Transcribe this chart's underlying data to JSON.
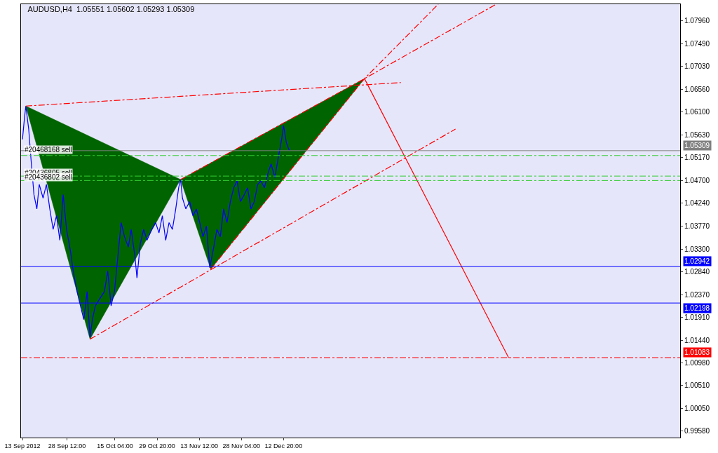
{
  "chart_data": {
    "type": "line",
    "title": "AUDUSD,H4  1.05551 1.05602 1.05293 1.05309",
    "series": [
      {
        "color": "#0000ff",
        "x": [
          "2012-09-13T00:00",
          "2012-09-13T16:00",
          "2012-09-14T04:00",
          "2012-09-15T04:00",
          "2012-09-16T00:00",
          "2012-09-17T00:00",
          "2012-09-18T00:00",
          "2012-09-18T20:00",
          "2012-09-20T04:00",
          "2012-09-21T08:00",
          "2012-09-22T12:00",
          "2012-09-23T16:00",
          "2012-09-24T20:00",
          "2012-09-26T00:00",
          "2012-09-27T04:00",
          "2012-09-28T08:00",
          "2012-09-29T16:00",
          "2012-09-30T20:00",
          "2012-10-02T00:00",
          "2012-10-03T04:00",
          "2012-10-04T08:00",
          "2012-10-05T12:00",
          "2012-10-06T12:00",
          "2012-10-07T08:00",
          "2012-10-08T08:00",
          "2012-10-09T20:00",
          "2012-10-11T12:00",
          "2012-10-12T16:00",
          "2012-10-13T20:00",
          "2012-10-15T00:00",
          "2012-10-16T04:00",
          "2012-10-17T08:00",
          "2012-10-18T12:00",
          "2012-10-19T20:00",
          "2012-10-20T20:00",
          "2012-10-22T04:00",
          "2012-10-22T20:00",
          "2012-10-24T00:00",
          "2012-10-25T04:00",
          "2012-10-26T08:00",
          "2012-10-28T00:00",
          "2012-10-29T08:00",
          "2012-10-30T12:00",
          "2012-10-31T16:00",
          "2012-11-01T20:00",
          "2012-11-03T00:00",
          "2012-11-04T04:00",
          "2012-11-05T08:00",
          "2012-11-06T08:00",
          "2012-11-07T00:00",
          "2012-11-07T16:00",
          "2012-11-08T20:00",
          "2012-11-10T04:00",
          "2012-11-11T08:00",
          "2012-11-12T12:00",
          "2012-11-13T16:00",
          "2012-11-14T20:00",
          "2012-11-16T00:00",
          "2012-11-17T04:00",
          "2012-11-18T08:00",
          "2012-11-19T16:00",
          "2012-11-20T20:00",
          "2012-11-22T00:00",
          "2012-11-23T04:00",
          "2012-11-24T08:00",
          "2012-11-25T12:00",
          "2012-11-26T16:00",
          "2012-11-27T20:00",
          "2012-11-29T04:00",
          "2012-11-30T08:00",
          "2012-12-01T12:00",
          "2012-12-02T16:00",
          "2012-12-03T20:00",
          "2012-12-05T00:00",
          "2012-12-06T04:00",
          "2012-12-07T08:00",
          "2012-12-08T12:00",
          "2012-12-09T20:00",
          "2012-12-10T20:00",
          "2012-12-12T04:00",
          "2012-12-12T20:00",
          "2012-12-13T20:00",
          "2012-12-14T20:00"
        ],
        "values": [
          1.0554,
          1.0596,
          1.0622,
          1.0575,
          1.0511,
          1.0441,
          1.0412,
          1.0462,
          1.0434,
          1.0462,
          1.0412,
          1.037,
          1.0398,
          1.0348,
          1.0441,
          1.037,
          1.0327,
          1.0278,
          1.0243,
          1.0214,
          1.0186,
          1.0243,
          1.015,
          1.0186,
          1.0214,
          1.0228,
          1.0243,
          1.0285,
          1.0214,
          1.0243,
          1.0313,
          1.0384,
          1.0355,
          1.0334,
          1.037,
          1.0313,
          1.0271,
          1.0341,
          1.037,
          1.0348,
          1.037,
          1.0384,
          1.0363,
          1.0398,
          1.0348,
          1.0384,
          1.037,
          1.0412,
          1.0455,
          1.0472,
          1.0434,
          1.0412,
          1.0427,
          1.0398,
          1.0412,
          1.0384,
          1.0355,
          1.0377,
          1.0292,
          1.0327,
          1.037,
          1.0355,
          1.0412,
          1.0384,
          1.0427,
          1.0455,
          1.0469,
          1.0427,
          1.0441,
          1.0455,
          1.0412,
          1.0427,
          1.0462,
          1.0469,
          1.0455,
          1.0483,
          1.0504,
          1.0476,
          1.0511,
          1.0554,
          1.0582,
          1.0547,
          1.0531
        ]
      },
      {
        "type": "area",
        "color": "#006400",
        "x": [
          "2012-09-14T04:00",
          "2012-10-06T12:00",
          "2012-11-07T00:00",
          "2012-09-14T04:00"
        ],
        "values": [
          1.0622,
          1.0146,
          1.0472,
          1.0622
        ]
      },
      {
        "type": "area",
        "color": "#006400",
        "x": [
          "2012-11-07T00:00",
          "2012-11-17T12:00",
          "2013-01-10T00:00",
          "2012-11-07T00:00"
        ],
        "values": [
          1.0472,
          1.0289,
          1.0678,
          1.0472
        ]
      },
      {
        "type": "line",
        "color": "#ff0000",
        "line_style": "dashed",
        "x": [
          "2012-09-14T04:00",
          "2013-01-22T16:00"
        ],
        "values": [
          1.0622,
          1.067
        ]
      },
      {
        "type": "line",
        "color": "#ff0000",
        "line_style": "dashed",
        "x": [
          "2012-10-06T12:00",
          "2013-02-10T16:00"
        ],
        "values": [
          1.0146,
          1.0575
        ]
      },
      {
        "type": "line",
        "color": "#ff0000",
        "line_style": "dashed",
        "x": [
          "2012-11-17T12:00",
          "2013-01-10T00:00",
          "2013-02-04T16:00"
        ],
        "values": [
          1.0289,
          1.0678,
          1.083
        ]
      },
      {
        "type": "line",
        "color": "#ff0000",
        "line_style": "dashed",
        "x": [
          "2012-11-07T00:00",
          "2013-01-10T00:00",
          "2013-02-24T20:00"
        ],
        "values": [
          1.0472,
          1.0678,
          1.083
        ]
      },
      {
        "type": "line",
        "color": "#ff0000",
        "line_style": "solid",
        "x": [
          "2013-01-10T00:00",
          "2013-03-01T04:00"
        ],
        "values": [
          1.0678,
          1.0108
        ]
      }
    ],
    "ref_lines": [
      {
        "axis": "y",
        "value": 1.05309,
        "label": "1.05309",
        "color": "#808080",
        "line_style": "solid"
      },
      {
        "axis": "y",
        "value": 1.0521,
        "color": "#32cd32",
        "line_style": "dashed"
      },
      {
        "axis": "y",
        "value": 1.0479,
        "color": "#32cd32",
        "line_style": "dashed"
      },
      {
        "axis": "y",
        "value": 1.047,
        "color": "#32cd32",
        "line_style": "dashed"
      },
      {
        "axis": "y",
        "value": 1.02942,
        "label": "1.02942",
        "color": "#0000ff",
        "line_style": "solid"
      },
      {
        "axis": "y",
        "value": 1.02198,
        "label": "1.02198",
        "color": "#0000ff",
        "line_style": "solid"
      },
      {
        "axis": "y",
        "value": 1.01083,
        "label": "1.01083",
        "color": "#ff0000",
        "line_style": "dashed"
      }
    ],
    "annotations": [
      {
        "text": "#20468168 sell",
        "x": "2012-09-13T12:00",
        "y": 1.0533
      },
      {
        "text": "#20436805 sell",
        "x": "2012-09-13T12:00",
        "y": 1.0486
      },
      {
        "text": "#20436802 sell",
        "x": "2012-09-13T12:00",
        "y": 1.0477
      }
    ],
    "xlim": [
      "2012-09-12T12:00",
      "2013-04-29T20:00"
    ],
    "xticks": [
      {
        "value": "2012-09-13T00:00",
        "label": "13 Sep 2012"
      },
      {
        "value": "2012-09-28T12:00",
        "label": "28 Sep 12:00"
      },
      {
        "value": "2012-10-15T04:00",
        "label": "15 Oct 04:00"
      },
      {
        "value": "2012-10-29T20:00",
        "label": "29 Oct 20:00"
      },
      {
        "value": "2012-11-13T12:00",
        "label": "13 Nov 12:00"
      },
      {
        "value": "2012-11-28T04:00",
        "label": "28 Nov 04:00"
      },
      {
        "value": "2012-12-12T20:00",
        "label": "12 Dec 20:00"
      }
    ],
    "ylim": [
      0.9945,
      1.083
    ],
    "yticks": [
      {
        "value": 1.0796,
        "label": "1.07960"
      },
      {
        "value": 1.0749,
        "label": "1.07490"
      },
      {
        "value": 1.0703,
        "label": "1.07030"
      },
      {
        "value": 1.0656,
        "label": "1.06560"
      },
      {
        "value": 1.061,
        "label": "1.06100"
      },
      {
        "value": 1.0563,
        "label": "1.05630"
      },
      {
        "value": 1.0517,
        "label": "1.05170"
      },
      {
        "value": 1.047,
        "label": "1.04700"
      },
      {
        "value": 1.0424,
        "label": "1.04240"
      },
      {
        "value": 1.0377,
        "label": "1.03770"
      },
      {
        "value": 1.033,
        "label": "1.03300"
      },
      {
        "value": 1.0284,
        "label": "1.02840"
      },
      {
        "value": 1.0237,
        "label": "1.02370"
      },
      {
        "value": 1.0191,
        "label": "1.01910"
      },
      {
        "value": 1.0144,
        "label": "1.01440"
      },
      {
        "value": 1.0098,
        "label": "1.00980"
      },
      {
        "value": 1.0051,
        "label": "1.00510"
      },
      {
        "value": 1.0005,
        "label": "1.00050"
      },
      {
        "value": 0.9958,
        "label": "0.99580"
      }
    ],
    "grid": false
  }
}
